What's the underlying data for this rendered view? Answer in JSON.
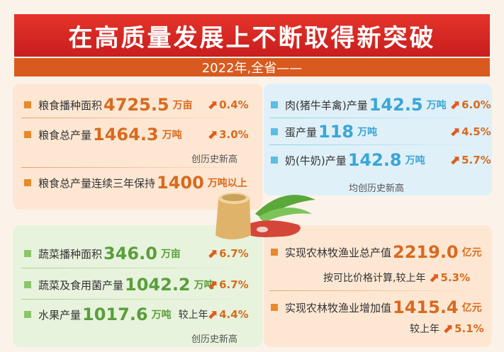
{
  "title": "在高质量发展上不断取得新突破",
  "subtitle": "2022年,全省——",
  "grain": {
    "area": {
      "label": "粮食播种面积",
      "value": "4725.5",
      "unit": "万亩",
      "change": "0.4%"
    },
    "output": {
      "label": "粮食总产量",
      "value": "1464.3",
      "unit": "万吨",
      "change": "3.0%"
    },
    "record_note": "创历史新高",
    "stable": {
      "label": "粮食总产量连续三年保持",
      "value": "1400",
      "unit": "万吨以上"
    }
  },
  "livestock": {
    "meat": {
      "label": "肉(猪牛羊禽)产量",
      "value": "142.5",
      "unit": "万吨",
      "change": "6.0%"
    },
    "egg": {
      "label": "蛋产量",
      "value": "118",
      "unit": "万吨",
      "change": "4.5%"
    },
    "milk": {
      "label": "奶(牛奶)产量",
      "value": "142.8",
      "unit": "万吨",
      "change": "5.7%"
    },
    "record_note": "均创历史新高"
  },
  "vegetables": {
    "area": {
      "label": "蔬菜播种面积",
      "value": "346.0",
      "unit": "万亩",
      "change": "6.7%"
    },
    "output": {
      "label": "蔬菜及食用菌产量",
      "value": "1042.2",
      "unit": "万吨",
      "change": "6.7%"
    },
    "fruit": {
      "label": "水果产量",
      "value": "1017.6",
      "unit": "万吨",
      "compare": "较上年",
      "change": "4.4%"
    },
    "record_note": "创历史新高"
  },
  "agri_value": {
    "total": {
      "label": "实现农林牧渔业总产值",
      "value": "2219.0",
      "unit": "亿元"
    },
    "total_note": "按可比价格计算,较上年",
    "total_change": "5.3%",
    "added": {
      "label": "实现农林牧渔业增加值",
      "value": "1415.4",
      "unit": "亿元"
    },
    "added_note": "较上年",
    "added_change": "5.1%"
  },
  "colors": {
    "title_red": "#d42a24",
    "subtitle_orange": "#d85a1e",
    "grain_orange": "#d86a1e",
    "livestock_blue": "#3aa6d6",
    "veg_green": "#5a9e3c",
    "arrow": "#e05a1d"
  },
  "icons": {
    "arrow": "up-arrow-icon",
    "illustration": "grain-bag-meat-vegetable-illustration"
  }
}
